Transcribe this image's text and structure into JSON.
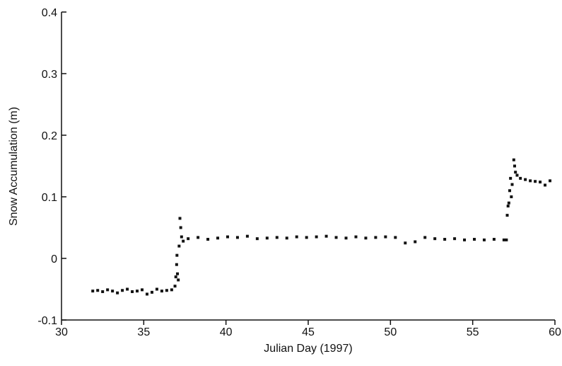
{
  "chart_data": {
    "type": "scatter",
    "x_label": "Julian Day (1997)",
    "y_label": "Snow Accumulation (m)",
    "color": "#111111",
    "xlim": [
      30,
      60
    ],
    "xticks": [
      30,
      35,
      40,
      45,
      50,
      55,
      60
    ],
    "ylim": [
      -0.1,
      0.4
    ],
    "yticks": [
      -0.1,
      0,
      0.1,
      0.2,
      0.3,
      0.4
    ],
    "x": [
      31.9,
      32.2,
      32.5,
      32.8,
      33.1,
      33.4,
      33.7,
      34.0,
      34.3,
      34.6,
      34.9,
      35.2,
      35.5,
      35.8,
      36.1,
      36.4,
      36.7,
      36.9,
      36.95,
      37.0,
      37.02,
      37.05,
      37.1,
      37.15,
      37.2,
      37.25,
      37.3,
      37.4,
      37.7,
      38.3,
      38.9,
      39.5,
      40.1,
      40.7,
      41.3,
      41.9,
      42.5,
      43.1,
      43.7,
      44.3,
      44.9,
      45.5,
      46.1,
      46.7,
      47.3,
      47.9,
      48.5,
      49.1,
      49.7,
      50.3,
      50.9,
      51.5,
      52.1,
      52.7,
      53.3,
      53.9,
      54.5,
      55.1,
      55.7,
      56.3,
      56.9,
      57.05,
      57.1,
      57.15,
      57.2,
      57.25,
      57.3,
      57.35,
      57.4,
      57.5,
      57.55,
      57.6,
      57.7,
      57.9,
      58.2,
      58.5,
      58.8,
      59.1,
      59.4,
      59.7
    ],
    "values": [
      -0.053,
      -0.052,
      -0.054,
      -0.051,
      -0.053,
      -0.056,
      -0.052,
      -0.05,
      -0.054,
      -0.053,
      -0.051,
      -0.058,
      -0.055,
      -0.05,
      -0.053,
      -0.052,
      -0.051,
      -0.045,
      -0.03,
      -0.01,
      0.005,
      -0.025,
      -0.035,
      0.02,
      0.065,
      0.05,
      0.035,
      0.028,
      0.032,
      0.034,
      0.031,
      0.033,
      0.035,
      0.034,
      0.036,
      0.032,
      0.033,
      0.034,
      0.033,
      0.035,
      0.034,
      0.035,
      0.036,
      0.034,
      0.033,
      0.035,
      0.033,
      0.034,
      0.035,
      0.034,
      0.025,
      0.027,
      0.034,
      0.032,
      0.031,
      0.032,
      0.03,
      0.031,
      0.03,
      0.031,
      0.03,
      0.03,
      0.07,
      0.085,
      0.09,
      0.11,
      0.13,
      0.1,
      0.12,
      0.16,
      0.15,
      0.14,
      0.135,
      0.13,
      0.128,
      0.126,
      0.125,
      0.124,
      0.119,
      0.126
    ]
  }
}
